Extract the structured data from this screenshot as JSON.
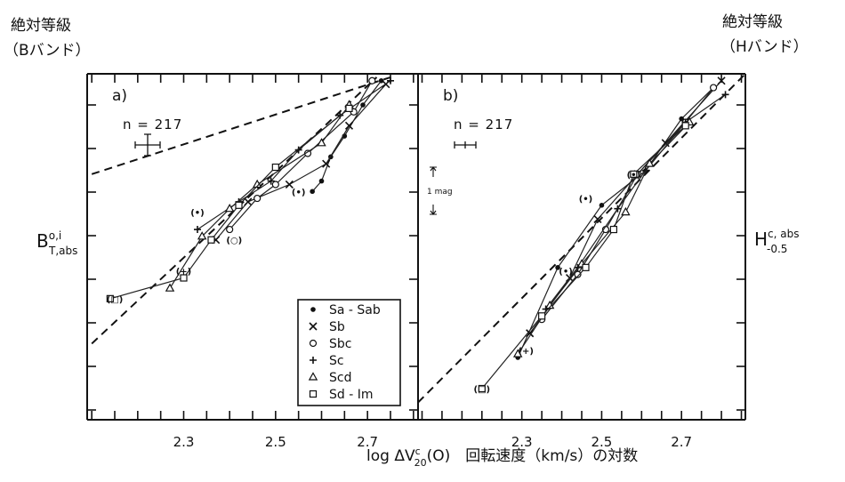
{
  "labels": {
    "left_axis_title_line1": "絶対等級",
    "left_axis_title_line2": "（Bバンド）",
    "right_axis_title_line1": "絶対等級",
    "right_axis_title_line2": "（Hバンド）",
    "x_axis_label": "log ΔV",
    "x_axis_label_sup": "c",
    "x_axis_label_sub": "20",
    "x_axis_label_rest": "(O)　回転速度（km/s）の対数"
  },
  "chart_data": [
    {
      "type": "line",
      "panel_label": "a)",
      "n_label": "n = 217",
      "ylabel_main": "B",
      "ylabel_sup": "o,i",
      "ylabel_sub": "T,abs",
      "x_ticks": [
        "2.3",
        "2.5",
        "2.7"
      ],
      "xlim": [
        2.09,
        2.81
      ],
      "ylim": [
        0,
        1
      ],
      "grid": false,
      "legend_position": "bottom-right",
      "legend": [
        {
          "marker": "•",
          "name": "Sa - Sab"
        },
        {
          "marker": "×",
          "name": "Sb"
        },
        {
          "marker": "○",
          "name": "Sbc"
        },
        {
          "marker": "+",
          "name": "Sc"
        },
        {
          "marker": "△",
          "name": "Scd"
        },
        {
          "marker": "□",
          "name": "Sd - Im"
        }
      ],
      "reference_lines": [
        {
          "x": [
            2.1,
            2.75
          ],
          "y": [
            0.71,
            0.99
          ]
        },
        {
          "x": [
            2.1,
            2.72
          ],
          "y": [
            0.22,
            0.99
          ]
        }
      ],
      "series": [
        {
          "name": "Sa - Sab",
          "marker": "dot",
          "x": [
            2.58,
            2.6,
            2.62,
            2.65,
            2.69,
            2.73
          ],
          "y": [
            0.66,
            0.69,
            0.76,
            0.82,
            0.91,
            0.98
          ]
        },
        {
          "name": "Sb",
          "marker": "x",
          "x": [
            2.37,
            2.44,
            2.53,
            2.61,
            2.66,
            2.74
          ],
          "y": [
            0.52,
            0.63,
            0.68,
            0.74,
            0.85,
            0.97
          ]
        },
        {
          "name": "Sbc",
          "marker": "circle",
          "x": [
            2.4,
            2.46,
            2.5,
            2.57,
            2.67,
            2.71
          ],
          "y": [
            0.55,
            0.64,
            0.68,
            0.77,
            0.89,
            0.98
          ]
        },
        {
          "name": "Sc",
          "marker": "plus",
          "x": [
            2.33,
            2.42,
            2.49,
            2.55,
            2.64,
            2.75
          ],
          "y": [
            0.55,
            0.63,
            0.69,
            0.78,
            0.88,
            0.98
          ]
        },
        {
          "name": "Scd",
          "marker": "triangle",
          "x": [
            2.27,
            2.34,
            2.4,
            2.46,
            2.6,
            2.66
          ],
          "y": [
            0.38,
            0.53,
            0.61,
            0.68,
            0.8,
            0.91
          ]
        },
        {
          "name": "Sd - Im",
          "marker": "square",
          "x": [
            2.14,
            2.3,
            2.36,
            2.42,
            2.5,
            2.66
          ],
          "y": [
            0.35,
            0.41,
            0.52,
            0.62,
            0.73,
            0.9
          ]
        }
      ],
      "labeled_points": [
        {
          "text": "(□)",
          "x": 2.15,
          "y": 0.35
        },
        {
          "text": "(+)",
          "x": 2.3,
          "y": 0.43
        },
        {
          "text": "(•)",
          "x": 2.33,
          "y": 0.6
        },
        {
          "text": "(○)",
          "x": 2.41,
          "y": 0.52
        },
        {
          "text": "(•)",
          "x": 2.55,
          "y": 0.66
        }
      ]
    },
    {
      "type": "line",
      "panel_label": "b)",
      "n_label": "n = 217",
      "mag_scale_label": "1 mag",
      "ylabel_main": "H",
      "ylabel_sup": "c, abs",
      "ylabel_sub": "-0.5",
      "x_ticks": [
        "2.3",
        "2.5",
        "2.7"
      ],
      "xlim": [
        2.04,
        2.86
      ],
      "ylim": [
        0,
        1
      ],
      "grid": false,
      "reference_lines": [
        {
          "x": [
            2.04,
            2.86
          ],
          "y": [
            0.05,
            1.0
          ]
        }
      ],
      "series": [
        {
          "name": "Sa - Sab",
          "marker": "dot",
          "x": [
            2.29,
            2.39,
            2.5,
            2.61,
            2.7,
            2.78
          ],
          "y": [
            0.18,
            0.44,
            0.62,
            0.72,
            0.87,
            0.96
          ]
        },
        {
          "name": "Sb",
          "marker": "x",
          "x": [
            2.32,
            2.42,
            2.49,
            2.59,
            2.66,
            2.8
          ],
          "y": [
            0.25,
            0.41,
            0.58,
            0.71,
            0.8,
            0.98
          ]
        },
        {
          "name": "Sbc",
          "marker": "circle",
          "x": [
            2.35,
            2.44,
            2.51,
            2.59,
            2.71,
            2.78
          ],
          "y": [
            0.29,
            0.42,
            0.55,
            0.71,
            0.86,
            0.96
          ]
        },
        {
          "name": "Sc",
          "marker": "plus",
          "x": [
            2.36,
            2.44,
            2.54,
            2.61,
            2.71,
            2.81
          ],
          "y": [
            0.32,
            0.44,
            0.61,
            0.72,
            0.86,
            0.94
          ]
        },
        {
          "name": "Scd",
          "marker": "triangle",
          "x": [
            2.29,
            2.37,
            2.45,
            2.56,
            2.62,
            2.72
          ],
          "y": [
            0.19,
            0.33,
            0.45,
            0.6,
            0.74,
            0.86
          ]
        },
        {
          "name": "Sd - Im",
          "marker": "square",
          "x": [
            2.2,
            2.35,
            2.46,
            2.53,
            2.58,
            2.71
          ],
          "y": [
            0.09,
            0.3,
            0.44,
            0.55,
            0.71,
            0.85
          ]
        }
      ],
      "labeled_points": [
        {
          "text": "(□)",
          "x": 2.2,
          "y": 0.09
        },
        {
          "text": "(+)",
          "x": 2.31,
          "y": 0.2
        },
        {
          "text": "(•)",
          "x": 2.41,
          "y": 0.43
        },
        {
          "text": "(•)",
          "x": 2.46,
          "y": 0.64
        },
        {
          "text": "(•)",
          "x": 2.58,
          "y": 0.71
        }
      ]
    }
  ]
}
